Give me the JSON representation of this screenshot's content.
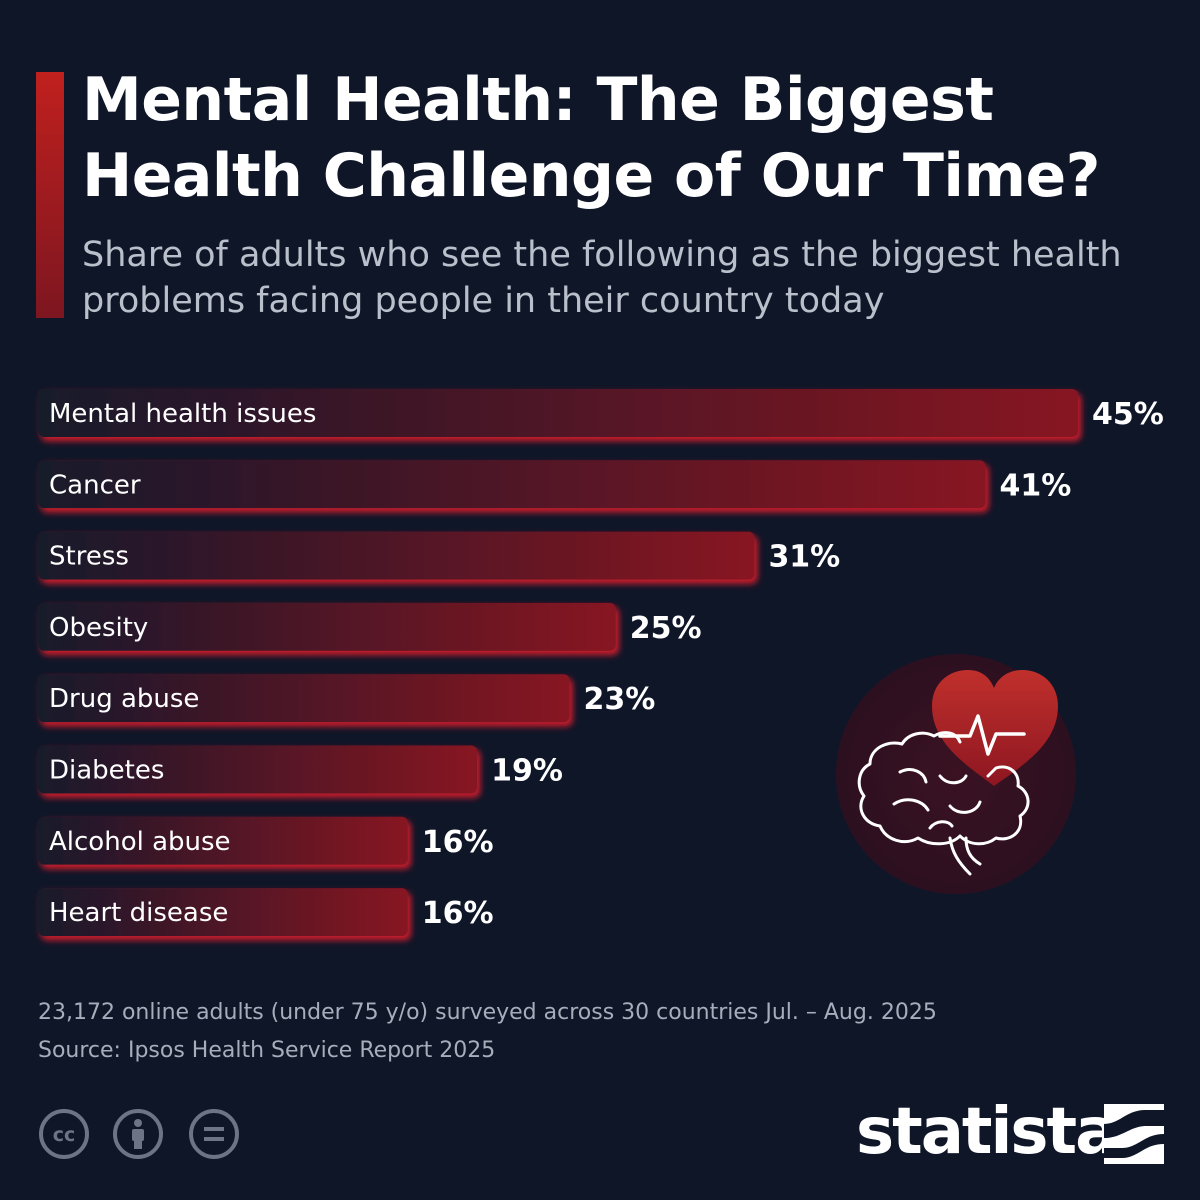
{
  "header": {
    "title": "Mental Health: The Biggest Health Challenge of Our Time?",
    "subtitle": "Share of adults who see the following as the biggest health problems facing people in their country today"
  },
  "chart_data": {
    "type": "bar",
    "orientation": "horizontal",
    "categories": [
      "Mental health issues",
      "Cancer",
      "Stress",
      "Obesity",
      "Drug abuse",
      "Diabetes",
      "Alcohol abuse",
      "Heart disease"
    ],
    "values": [
      45,
      41,
      31,
      25,
      23,
      19,
      16,
      16
    ],
    "value_labels": [
      "45%",
      "41%",
      "31%",
      "25%",
      "23%",
      "19%",
      "16%",
      "16%"
    ],
    "unit": "%",
    "xlim": [
      0,
      45
    ],
    "grid": false,
    "legend": "none"
  },
  "footer": {
    "note": "23,172 online adults (under 75 y/o) surveyed across 30 countries Jul. – Aug. 2025",
    "source": "Source: Ipsos Health Service Report 2025",
    "brand": "statista"
  },
  "illustration": {
    "icon": "brain-heart-icon"
  },
  "license_icons": [
    "creative-commons-icon",
    "attribution-icon",
    "no-derivatives-icon"
  ],
  "colors": {
    "background": "#0e1628",
    "accent": "#c0201e",
    "bar_start": "#1a1a2c",
    "bar_end": "#8a1522",
    "bar_glow": "#e11d2a",
    "subtitle": "#b9c0cb",
    "footer_text": "#a7aebb",
    "license_icon": "#6c7486"
  }
}
